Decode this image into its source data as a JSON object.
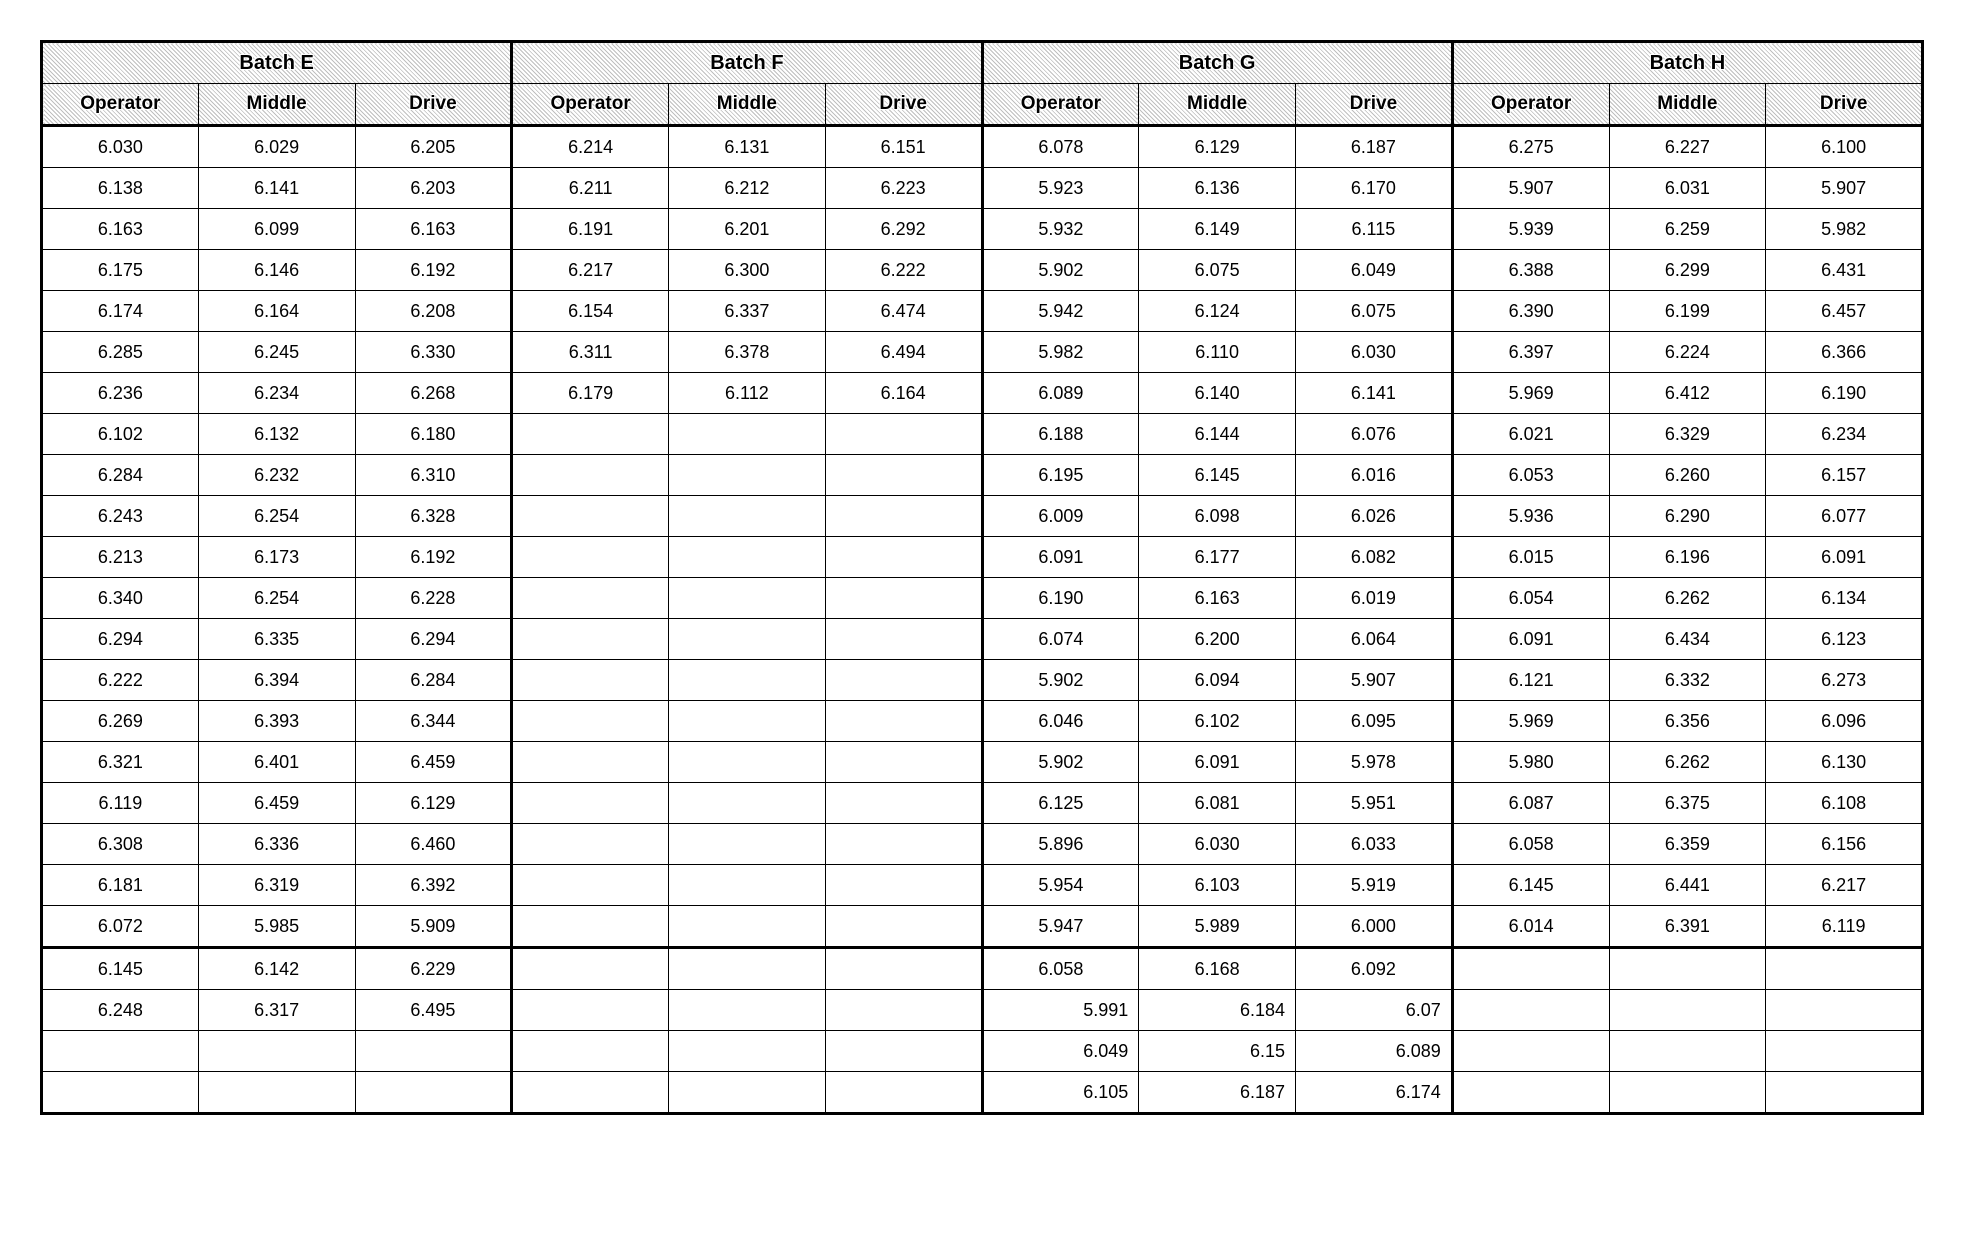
{
  "table": {
    "font_family": "Arial",
    "border_color": "#000000",
    "background_color": "#ffffff",
    "header_pattern_color": "#bfbfbf",
    "columns_per_batch": [
      "Operator",
      "Middle",
      "Drive"
    ],
    "batches": [
      {
        "name": "Batch E",
        "row_count": 22,
        "thick_after_row": 20,
        "rows": [
          [
            "6.030",
            "6.029",
            "6.205"
          ],
          [
            "6.138",
            "6.141",
            "6.203"
          ],
          [
            "6.163",
            "6.099",
            "6.163"
          ],
          [
            "6.175",
            "6.146",
            "6.192"
          ],
          [
            "6.174",
            "6.164",
            "6.208"
          ],
          [
            "6.285",
            "6.245",
            "6.330"
          ],
          [
            "6.236",
            "6.234",
            "6.268"
          ],
          [
            "6.102",
            "6.132",
            "6.180"
          ],
          [
            "6.284",
            "6.232",
            "6.310"
          ],
          [
            "6.243",
            "6.254",
            "6.328"
          ],
          [
            "6.213",
            "6.173",
            "6.192"
          ],
          [
            "6.340",
            "6.254",
            "6.228"
          ],
          [
            "6.294",
            "6.335",
            "6.294"
          ],
          [
            "6.222",
            "6.394",
            "6.284"
          ],
          [
            "6.269",
            "6.393",
            "6.344"
          ],
          [
            "6.321",
            "6.401",
            "6.459"
          ],
          [
            "6.119",
            "6.459",
            "6.129"
          ],
          [
            "6.308",
            "6.336",
            "6.460"
          ],
          [
            "6.181",
            "6.319",
            "6.392"
          ],
          [
            "6.072",
            "5.985",
            "5.909"
          ],
          [
            "6.145",
            "6.142",
            "6.229"
          ],
          [
            "6.248",
            "6.317",
            "6.495"
          ]
        ]
      },
      {
        "name": "Batch F",
        "row_count": 7,
        "thick_after_row": 20,
        "rows": [
          [
            "6.214",
            "6.131",
            "6.151"
          ],
          [
            "6.211",
            "6.212",
            "6.223"
          ],
          [
            "6.191",
            "6.201",
            "6.292"
          ],
          [
            "6.217",
            "6.300",
            "6.222"
          ],
          [
            "6.154",
            "6.337",
            "6.474"
          ],
          [
            "6.311",
            "6.378",
            "6.494"
          ],
          [
            "6.179",
            "6.112",
            "6.164"
          ]
        ]
      },
      {
        "name": "Batch G",
        "row_count": 24,
        "thick_after_row": 20,
        "right_align_from_row": 22,
        "rows": [
          [
            "6.078",
            "6.129",
            "6.187"
          ],
          [
            "5.923",
            "6.136",
            "6.170"
          ],
          [
            "5.932",
            "6.149",
            "6.115"
          ],
          [
            "5.902",
            "6.075",
            "6.049"
          ],
          [
            "5.942",
            "6.124",
            "6.075"
          ],
          [
            "5.982",
            "6.110",
            "6.030"
          ],
          [
            "6.089",
            "6.140",
            "6.141"
          ],
          [
            "6.188",
            "6.144",
            "6.076"
          ],
          [
            "6.195",
            "6.145",
            "6.016"
          ],
          [
            "6.009",
            "6.098",
            "6.026"
          ],
          [
            "6.091",
            "6.177",
            "6.082"
          ],
          [
            "6.190",
            "6.163",
            "6.019"
          ],
          [
            "6.074",
            "6.200",
            "6.064"
          ],
          [
            "5.902",
            "6.094",
            "5.907"
          ],
          [
            "6.046",
            "6.102",
            "6.095"
          ],
          [
            "5.902",
            "6.091",
            "5.978"
          ],
          [
            "6.125",
            "6.081",
            "5.951"
          ],
          [
            "5.896",
            "6.030",
            "6.033"
          ],
          [
            "5.954",
            "6.103",
            "5.919"
          ],
          [
            "5.947",
            "5.989",
            "6.000"
          ],
          [
            "6.058",
            "6.168",
            "6.092"
          ],
          [
            "5.991",
            "6.184",
            "6.07"
          ],
          [
            "6.049",
            "6.15",
            "6.089"
          ],
          [
            "6.105",
            "6.187",
            "6.174"
          ]
        ]
      },
      {
        "name": "Batch H",
        "row_count": 20,
        "thick_after_row": 20,
        "rows": [
          [
            "6.275",
            "6.227",
            "6.100"
          ],
          [
            "5.907",
            "6.031",
            "5.907"
          ],
          [
            "5.939",
            "6.259",
            "5.982"
          ],
          [
            "6.388",
            "6.299",
            "6.431"
          ],
          [
            "6.390",
            "6.199",
            "6.457"
          ],
          [
            "6.397",
            "6.224",
            "6.366"
          ],
          [
            "5.969",
            "6.412",
            "6.190"
          ],
          [
            "6.021",
            "6.329",
            "6.234"
          ],
          [
            "6.053",
            "6.260",
            "6.157"
          ],
          [
            "5.936",
            "6.290",
            "6.077"
          ],
          [
            "6.015",
            "6.196",
            "6.091"
          ],
          [
            "6.054",
            "6.262",
            "6.134"
          ],
          [
            "6.091",
            "6.434",
            "6.123"
          ],
          [
            "6.121",
            "6.332",
            "6.273"
          ],
          [
            "5.969",
            "6.356",
            "6.096"
          ],
          [
            "5.980",
            "6.262",
            "6.130"
          ],
          [
            "6.087",
            "6.375",
            "6.108"
          ],
          [
            "6.058",
            "6.359",
            "6.156"
          ],
          [
            "6.145",
            "6.441",
            "6.217"
          ],
          [
            "6.014",
            "6.391",
            "6.119"
          ]
        ]
      }
    ],
    "total_rows": 24
  }
}
